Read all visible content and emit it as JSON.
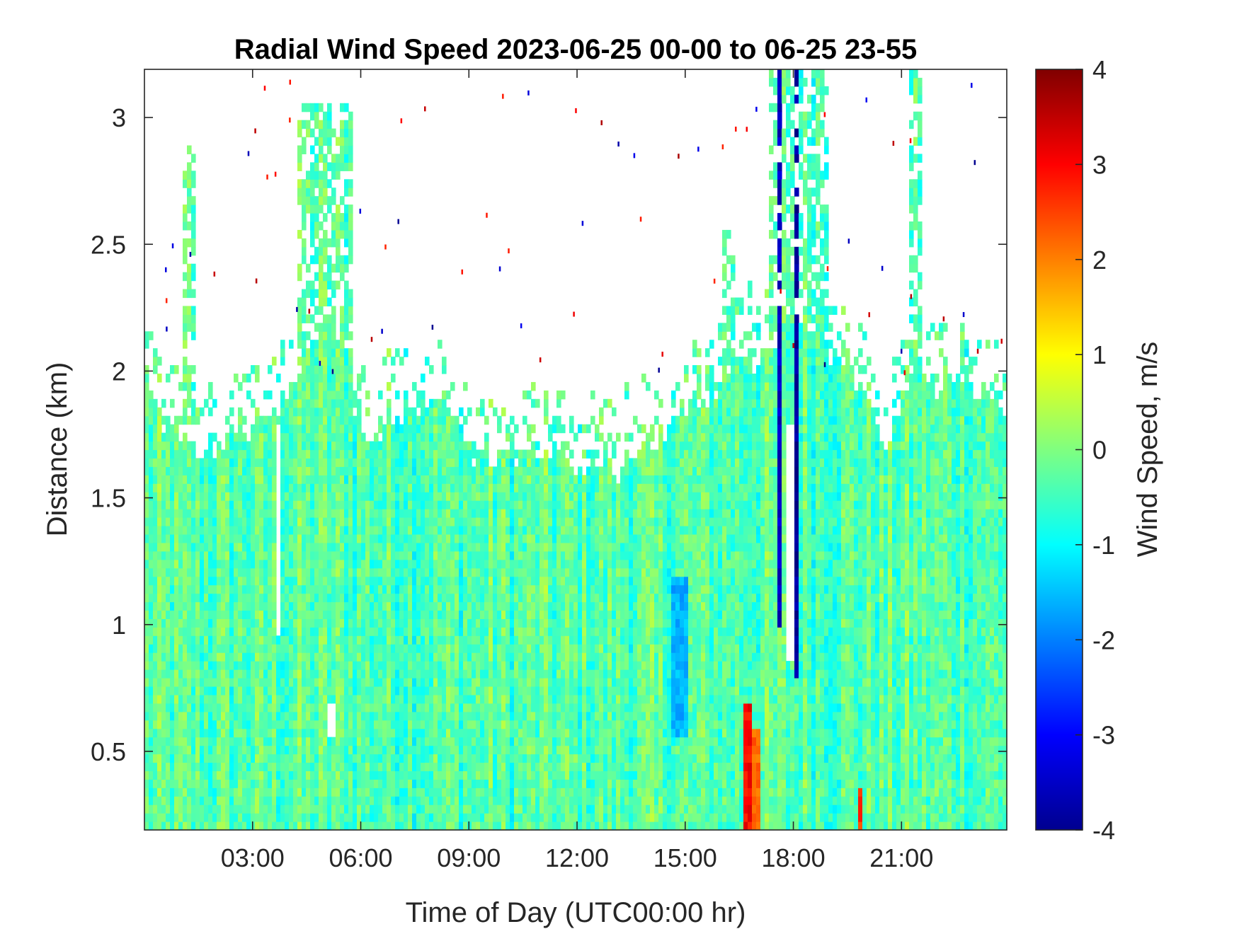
{
  "chart_data": {
    "type": "heatmap",
    "title": "Radial Wind Speed 2023-06-25 00-00 to 06-25 23-55",
    "xlabel": "Time of Day (UTC00:00 hr)",
    "ylabel": "Distance (km)",
    "colorbar_label": "Wind Speed, m/s",
    "colormap": "jet",
    "xlim_hours": [
      0,
      23.92
    ],
    "ylim_km": [
      0.19,
      3.19
    ],
    "clim": [
      -4,
      4
    ],
    "x_ticks": [
      {
        "value": 3,
        "label": "03:00"
      },
      {
        "value": 6,
        "label": "06:00"
      },
      {
        "value": 9,
        "label": "09:00"
      },
      {
        "value": 12,
        "label": "12:00"
      },
      {
        "value": 15,
        "label": "15:00"
      },
      {
        "value": 18,
        "label": "18:00"
      },
      {
        "value": 21,
        "label": "21:00"
      }
    ],
    "y_ticks": [
      {
        "value": 0.5,
        "label": "0.5"
      },
      {
        "value": 1,
        "label": "1"
      },
      {
        "value": 1.5,
        "label": "1.5"
      },
      {
        "value": 2,
        "label": "2"
      },
      {
        "value": 2.5,
        "label": "2.5"
      },
      {
        "value": 3,
        "label": "3"
      }
    ],
    "colorbar_ticks": [
      {
        "value": -4,
        "label": "-4"
      },
      {
        "value": -3,
        "label": "-3"
      },
      {
        "value": -2,
        "label": "-2"
      },
      {
        "value": -1,
        "label": "-1"
      },
      {
        "value": 0,
        "label": "0"
      },
      {
        "value": 1,
        "label": "1"
      },
      {
        "value": 2,
        "label": "2"
      },
      {
        "value": 3,
        "label": "3"
      },
      {
        "value": 4,
        "label": "4"
      }
    ],
    "data_top_km": [
      [
        0.0,
        2.05
      ],
      [
        0.5,
        1.8
      ],
      [
        1.0,
        1.75
      ],
      [
        1.5,
        1.7
      ],
      [
        2.0,
        1.7
      ],
      [
        2.5,
        1.75
      ],
      [
        3.0,
        1.75
      ],
      [
        3.5,
        1.8
      ],
      [
        4.0,
        1.85
      ],
      [
        4.5,
        2.1
      ],
      [
        5.0,
        2.2
      ],
      [
        5.5,
        2.15
      ],
      [
        6.0,
        1.75
      ],
      [
        6.5,
        1.75
      ],
      [
        7.0,
        1.85
      ],
      [
        7.5,
        1.85
      ],
      [
        8.0,
        1.9
      ],
      [
        8.5,
        1.8
      ],
      [
        9.0,
        1.7
      ],
      [
        9.5,
        1.65
      ],
      [
        10.0,
        1.7
      ],
      [
        10.5,
        1.65
      ],
      [
        11.0,
        1.7
      ],
      [
        11.5,
        1.7
      ],
      [
        12.0,
        1.6
      ],
      [
        12.5,
        1.65
      ],
      [
        13.0,
        1.6
      ],
      [
        13.5,
        1.65
      ],
      [
        14.0,
        1.7
      ],
      [
        14.5,
        1.75
      ],
      [
        15.0,
        1.85
      ],
      [
        15.5,
        1.9
      ],
      [
        16.0,
        1.95
      ],
      [
        16.5,
        2.1
      ],
      [
        17.0,
        2.0
      ],
      [
        17.5,
        2.1
      ],
      [
        18.0,
        2.3
      ],
      [
        18.5,
        2.2
      ],
      [
        19.0,
        2.05
      ],
      [
        19.5,
        2.0
      ],
      [
        20.0,
        1.9
      ],
      [
        20.5,
        1.7
      ],
      [
        21.0,
        1.9
      ],
      [
        21.5,
        2.0
      ],
      [
        22.0,
        1.95
      ],
      [
        22.5,
        2.0
      ],
      [
        23.0,
        1.95
      ],
      [
        23.92,
        1.85
      ]
    ],
    "patches_m_per_s": [
      {
        "x": [
          14.6,
          15.1
        ],
        "y": [
          0.55,
          1.2
        ],
        "value": -1.6
      },
      {
        "x": [
          16.6,
          16.9
        ],
        "y": [
          0.19,
          0.7
        ],
        "value": 3.0
      },
      {
        "x": [
          16.9,
          17.1
        ],
        "y": [
          0.19,
          0.6
        ],
        "value": 2.2
      },
      {
        "x": [
          18.05,
          18.15
        ],
        "y": [
          0.8,
          3.19
        ],
        "value": -3.8
      },
      {
        "x": [
          17.6,
          17.65
        ],
        "y": [
          1.0,
          3.19
        ],
        "value": -3.5
      },
      {
        "x": [
          19.8,
          19.9
        ],
        "y": [
          0.19,
          0.35
        ],
        "value": 2.6
      }
    ],
    "gaps": [
      {
        "x": [
          3.6,
          3.8
        ],
        "y": [
          0.95,
          1.8
        ]
      },
      {
        "x": [
          5.05,
          5.3
        ],
        "y": [
          0.55,
          0.7
        ]
      },
      {
        "x": [
          17.85,
          18.0
        ],
        "y": [
          0.85,
          1.8
        ]
      }
    ],
    "plumes": [
      {
        "x": [
          1.1,
          1.4
        ],
        "y_top": 2.9
      },
      {
        "x": [
          4.2,
          5.8
        ],
        "y_top": 3.05
      },
      {
        "x": [
          16.0,
          16.4
        ],
        "y_top": 2.55
      },
      {
        "x": [
          17.3,
          19.0
        ],
        "y_top": 3.19
      },
      {
        "x": [
          21.2,
          21.6
        ],
        "y_top": 3.19
      }
    ]
  }
}
